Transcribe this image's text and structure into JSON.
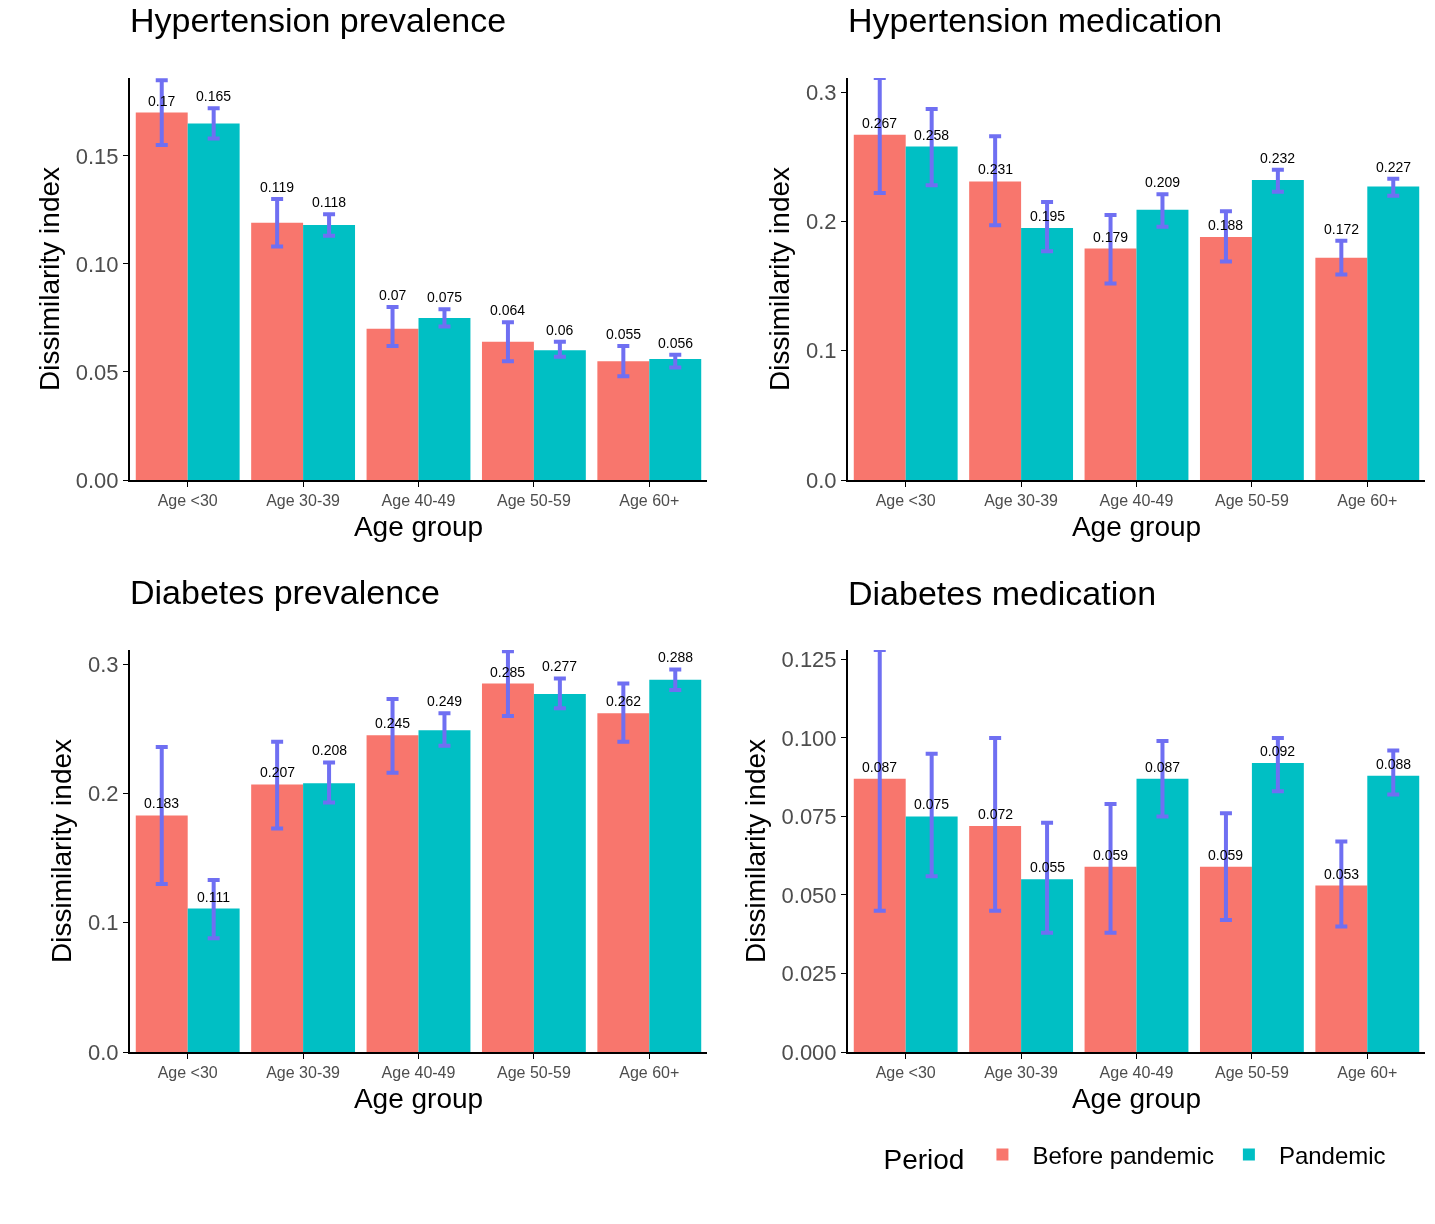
{
  "chart_data": [
    {
      "type": "bar",
      "title": "Hypertension prevalence",
      "xlabel": "Age group",
      "ylabel": "Dissimilarity index",
      "categories": [
        "Age <30",
        "Age 30-39",
        "Age 40-49",
        "Age 50-59",
        "Age 60+"
      ],
      "ylim": [
        0,
        0.186
      ],
      "yticks": [
        {
          "value": 0,
          "label": "0.00"
        },
        0.05,
        {
          "value": 0.1,
          "label": "0.10"
        },
        0.15
      ],
      "grid": false,
      "data_labels": true,
      "series": [
        {
          "color": "#f8766d",
          "values": [
            0.17,
            0.119,
            0.07,
            0.064,
            0.055
          ],
          "errors": [
            [
              0.155,
              0.185
            ],
            [
              0.108,
              0.13
            ],
            [
              0.062,
              0.08
            ],
            [
              0.055,
              0.073
            ],
            [
              0.048,
              0.062
            ]
          ]
        },
        {
          "color": "#00bfc4",
          "values": [
            0.165,
            0.118,
            0.075,
            0.06,
            0.056
          ],
          "errors": [
            [
              0.158,
              0.172
            ],
            [
              0.113,
              0.123
            ],
            [
              0.071,
              0.079
            ],
            [
              0.057,
              0.064
            ],
            [
              0.052,
              0.058
            ]
          ]
        }
      ]
    },
    {
      "type": "bar",
      "title": "Hypertension medication",
      "xlabel": "Age group",
      "ylabel": "Dissimilarity index",
      "categories": [
        "Age <30",
        "Age 30-39",
        "Age 40-49",
        "Age 50-59",
        "Age 60+"
      ],
      "ylim": [
        0,
        0.311
      ],
      "yticks": [
        {
          "value": 0,
          "label": "0.0"
        },
        0.1,
        0.2,
        0.3
      ],
      "grid": false,
      "data_labels": true,
      "series": [
        {
          "color": "#f8766d",
          "values": [
            0.267,
            0.231,
            0.179,
            0.188,
            0.172
          ],
          "errors": [
            [
              0.222,
              0.311
            ],
            [
              0.197,
              0.266
            ],
            [
              0.152,
              0.205
            ],
            [
              0.169,
              0.208
            ],
            [
              0.159,
              0.185
            ]
          ]
        },
        {
          "color": "#00bfc4",
          "values": [
            0.258,
            0.195,
            0.209,
            0.232,
            0.227
          ],
          "errors": [
            [
              0.228,
              0.287
            ],
            [
              0.177,
              0.215
            ],
            [
              0.196,
              0.221
            ],
            [
              0.223,
              0.24
            ],
            [
              0.22,
              0.233
            ]
          ]
        }
      ]
    },
    {
      "type": "bar",
      "title": "Diabetes prevalence",
      "xlabel": "Age group",
      "ylabel": "Dissimilarity index",
      "categories": [
        "Age <30",
        "Age 30-39",
        "Age 40-49",
        "Age 50-59",
        "Age 60+"
      ],
      "ylim": [
        0,
        0.311
      ],
      "yticks": [
        {
          "value": 0,
          "label": "0.0"
        },
        0.1,
        0.2,
        0.3
      ],
      "grid": false,
      "data_labels": true,
      "series": [
        {
          "color": "#f8766d",
          "values": [
            0.183,
            0.207,
            0.245,
            0.285,
            0.262
          ],
          "errors": [
            [
              0.13,
              0.236
            ],
            [
              0.173,
              0.24
            ],
            [
              0.216,
              0.273
            ],
            [
              0.26,
              0.31
            ],
            [
              0.24,
              0.285
            ]
          ]
        },
        {
          "color": "#00bfc4",
          "values": [
            0.111,
            0.208,
            0.249,
            0.277,
            0.288
          ],
          "errors": [
            [
              0.088,
              0.133
            ],
            [
              0.193,
              0.224
            ],
            [
              0.237,
              0.262
            ],
            [
              0.266,
              0.289
            ],
            [
              0.28,
              0.296
            ]
          ]
        }
      ]
    },
    {
      "type": "bar",
      "title": "Diabetes medication",
      "xlabel": "Age group",
      "ylabel": "Dissimilarity index",
      "categories": [
        "Age <30",
        "Age 30-39",
        "Age 40-49",
        "Age 50-59",
        "Age 60+"
      ],
      "ylim": [
        0,
        0.128
      ],
      "yticks": [
        {
          "value": 0,
          "label": "0.000"
        },
        0.025,
        {
          "value": 0.05,
          "label": "0.050"
        },
        0.075,
        {
          "value": 0.1,
          "label": "0.100"
        },
        0.125
      ],
      "grid": false,
      "data_labels": true,
      "legend": "bottom",
      "legend_title": "Period",
      "series": [
        {
          "name": "Before pandemic",
          "color": "#f8766d",
          "values": [
            0.087,
            0.072,
            0.059,
            0.059,
            0.053
          ],
          "errors": [
            [
              0.045,
              0.128
            ],
            [
              0.045,
              0.1
            ],
            [
              0.038,
              0.079
            ],
            [
              0.042,
              0.076
            ],
            [
              0.04,
              0.067
            ]
          ]
        },
        {
          "name": "Pandemic",
          "color": "#00bfc4",
          "values": [
            0.075,
            0.055,
            0.087,
            0.092,
            0.088
          ],
          "errors": [
            [
              0.056,
              0.095
            ],
            [
              0.038,
              0.073
            ],
            [
              0.075,
              0.099
            ],
            [
              0.083,
              0.1
            ],
            [
              0.082,
              0.096
            ]
          ]
        }
      ]
    }
  ]
}
